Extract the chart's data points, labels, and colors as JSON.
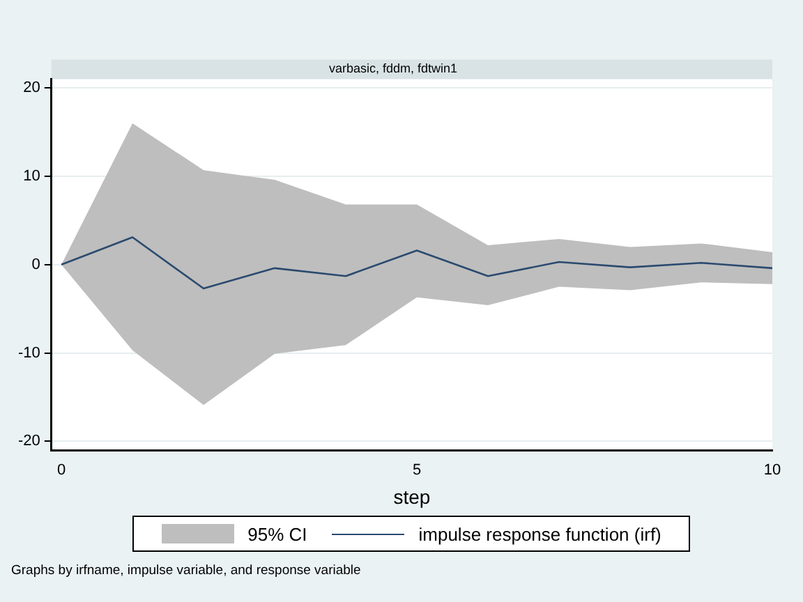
{
  "chart_data": {
    "type": "line",
    "title": "varbasic, fddm, fdtwin1",
    "xlabel": "step",
    "x": [
      0,
      1,
      2,
      3,
      4,
      5,
      6,
      7,
      8,
      9,
      10
    ],
    "series": [
      {
        "name": "impulse response function (irf)",
        "color": "#2b4a6f",
        "values": [
          0,
          3.1,
          -2.7,
          -0.4,
          -1.3,
          1.6,
          -1.3,
          0.3,
          -0.3,
          0.2,
          -0.4
        ],
        "lower": [
          0,
          -9.7,
          -15.9,
          -10.1,
          -9.1,
          -3.7,
          -4.6,
          -2.5,
          -2.9,
          -2.0,
          -2.2
        ],
        "upper": [
          0,
          16.0,
          10.7,
          9.6,
          6.8,
          6.8,
          2.2,
          2.9,
          2.0,
          2.4,
          1.4
        ]
      }
    ],
    "xlim": [
      -0.14,
      10
    ],
    "xticks": [
      0,
      5,
      10
    ],
    "ylim": [
      -21,
      21
    ],
    "yticks": [
      -20,
      -10,
      0,
      10,
      20
    ],
    "grid": "y",
    "legend": "bottom",
    "marker": "none",
    "line_style": "solid",
    "annotations": [
      "95% CI",
      "Graphs by irfname, impulse variable, and response variable"
    ]
  }
}
